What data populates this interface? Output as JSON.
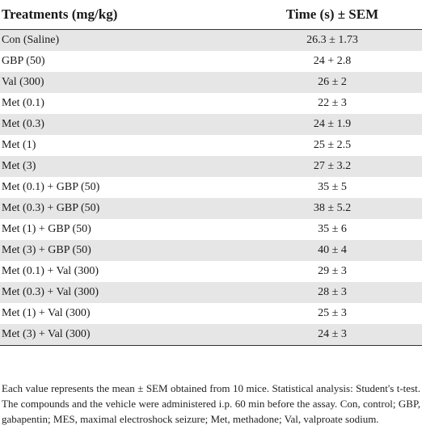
{
  "table": {
    "headers": [
      "Treatments (mg/kg)",
      "Time (s) ± SEM"
    ],
    "rows": [
      {
        "treatment": "Con (Saline)",
        "time": "26.3 ± 1.73"
      },
      {
        "treatment": "GBP (50)",
        "time": "24 + 2.8"
      },
      {
        "treatment": "Val (300)",
        "time": "26 ± 2"
      },
      {
        "treatment": "Met (0.1)",
        "time": "22 ± 3"
      },
      {
        "treatment": "Met (0.3)",
        "time": "24 ± 1.9"
      },
      {
        "treatment": "Met (1)",
        "time": "25 ± 2.5"
      },
      {
        "treatment": "Met (3)",
        "time": "27 ± 3.2"
      },
      {
        "treatment": "Met (0.1) + GBP (50)",
        "time": "35 ± 5"
      },
      {
        "treatment": "Met (0.3) + GBP (50)",
        "time": "38 ± 5.2"
      },
      {
        "treatment": "Met (1) + GBP (50)",
        "time": "35 ± 6"
      },
      {
        "treatment": "Met (3) + GBP (50)",
        "time": "40 ± 4"
      },
      {
        "treatment": "Met (0.1) + Val (300)",
        "time": "29 ± 3"
      },
      {
        "treatment": "Met (0.3) + Val (300)",
        "time": "28 ± 3"
      },
      {
        "treatment": "Met (1) + Val (300)",
        "time": "25 ± 3"
      },
      {
        "treatment": "Met (3) + Val (300)",
        "time": "24 ± 3"
      }
    ]
  },
  "footnote": "Each value represents the mean ± SEM obtained from 10 mice. Statistical analysis: Student's t-test. The compounds and the vehicle were administered i.p. 60 min before the assay. Con, control; GBP, gabapentin; MES, maximal electroshock seizure; Met, methadone; Val, valproate sodium.",
  "colors": {
    "stripe": "#e6e6e6",
    "rule": "#333333"
  }
}
